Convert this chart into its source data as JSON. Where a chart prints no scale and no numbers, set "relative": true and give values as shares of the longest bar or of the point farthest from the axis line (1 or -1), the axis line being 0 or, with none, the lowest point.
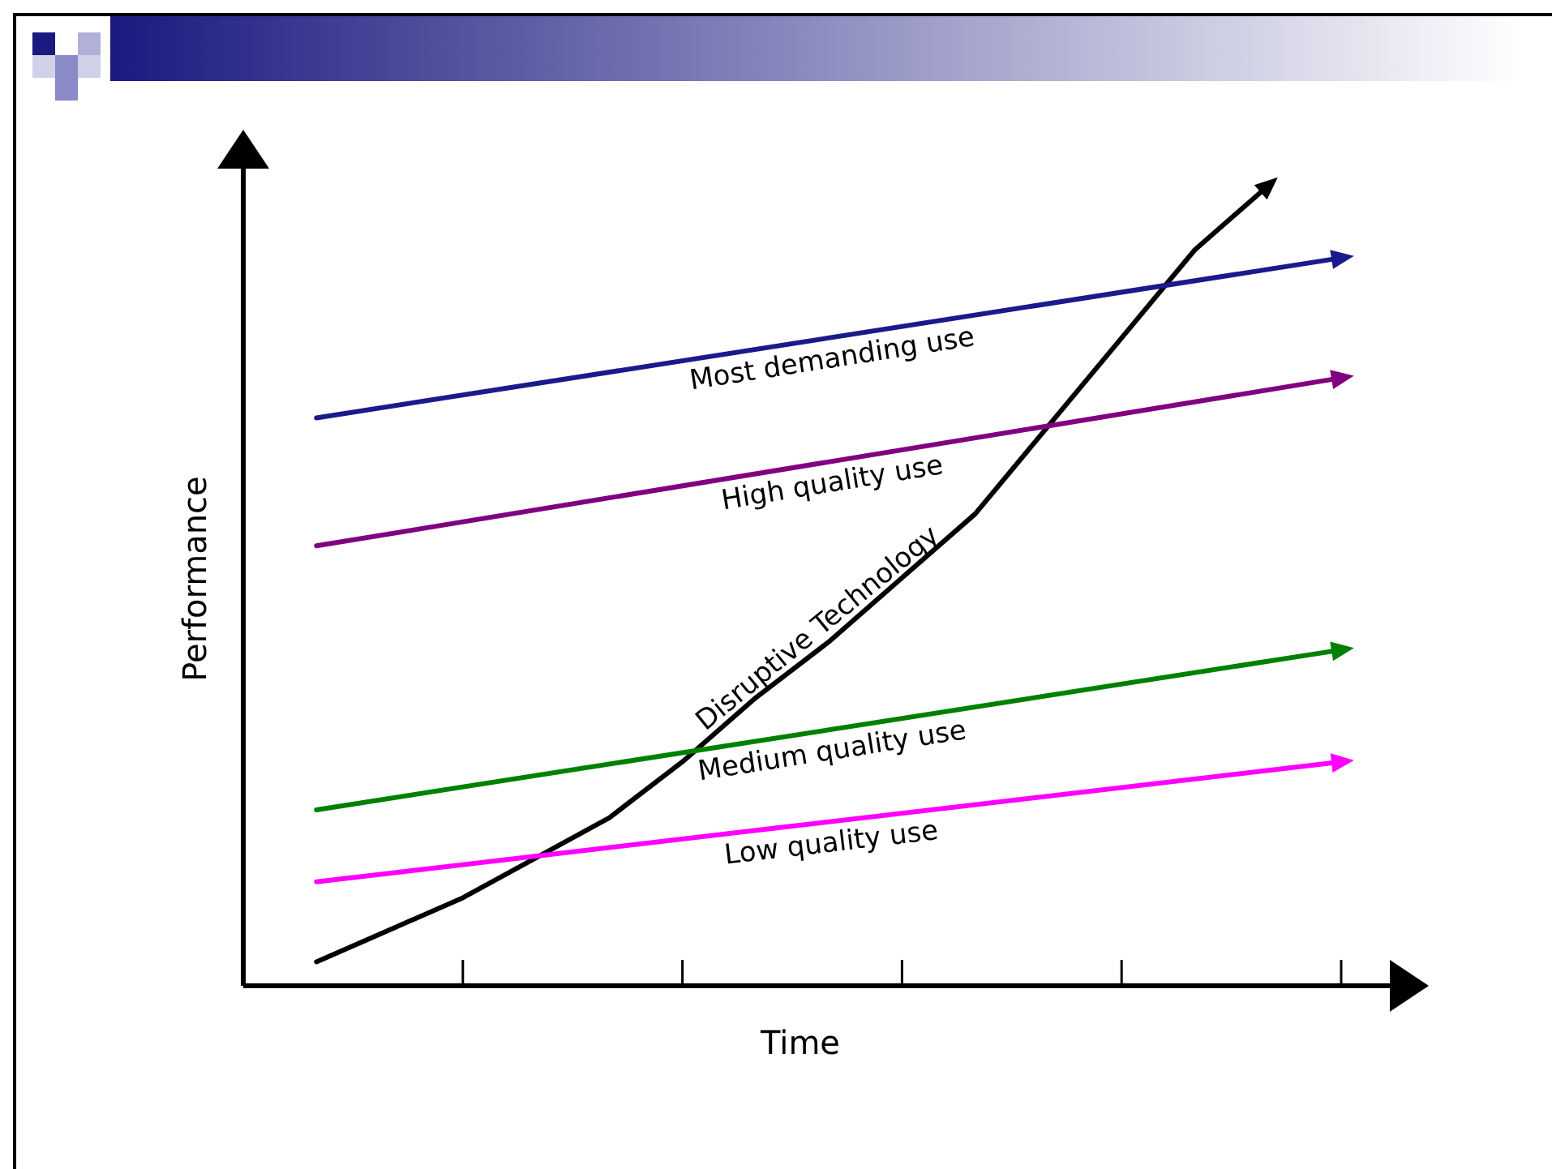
{
  "chart_data": {
    "type": "line",
    "relative": true,
    "xlabel": "Time",
    "ylabel": "Performance",
    "categories": [
      null,
      null,
      null,
      null,
      null,
      null,
      null,
      null,
      null,
      null,
      null,
      null,
      null,
      null,
      null,
      null
    ],
    "line_style": "solid",
    "series": [
      {
        "name": "Most demanding use",
        "color": "#1a1a8c",
        "values": [
          null,
          0.71,
          null,
          null,
          null,
          null,
          null,
          null,
          null,
          null,
          null,
          null,
          null,
          null,
          null,
          0.91
        ]
      },
      {
        "name": "High quality use",
        "color": "#800080",
        "values": [
          null,
          0.55,
          null,
          null,
          null,
          null,
          null,
          null,
          null,
          null,
          null,
          null,
          null,
          null,
          null,
          0.76
        ]
      },
      {
        "name": "Medium quality use",
        "color": "#008000",
        "values": [
          null,
          0.22,
          null,
          null,
          null,
          null,
          null,
          null,
          null,
          null,
          null,
          null,
          null,
          null,
          null,
          0.42
        ]
      },
      {
        "name": "Low quality use",
        "color": "#ff00ff",
        "values": [
          null,
          0.13,
          null,
          null,
          null,
          null,
          null,
          null,
          null,
          null,
          null,
          null,
          null,
          null,
          null,
          0.28
        ]
      },
      {
        "name": "Disruptive Technology",
        "color": "#000000",
        "values": [
          null,
          0.03,
          0.07,
          0.11,
          0.16,
          0.21,
          0.28,
          0.36,
          0.43,
          0.51,
          0.59,
          0.7,
          0.81,
          0.92,
          1.0,
          null
        ]
      }
    ]
  }
}
